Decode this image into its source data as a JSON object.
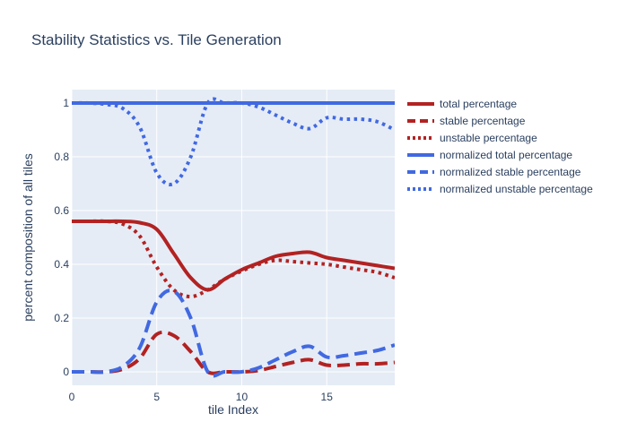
{
  "chart_data": {
    "type": "line",
    "title": "Stability Statistics vs. Tile Generation",
    "xlabel": "tile Index",
    "ylabel": "percent composition of all tiles",
    "xlim": [
      0,
      19
    ],
    "ylim": [
      -0.05,
      1.05
    ],
    "x_ticks": [
      0,
      5,
      10,
      15
    ],
    "x_tick_labels": [
      "0",
      "5",
      "10",
      "15"
    ],
    "y_ticks": [
      0,
      0.2,
      0.4,
      0.6,
      0.8,
      1
    ],
    "y_tick_labels": [
      "0",
      "0.2",
      "0.4",
      "0.6",
      "0.8",
      "1"
    ],
    "grid": true,
    "legend_position": "right",
    "x": [
      0,
      1,
      2,
      3,
      4,
      5,
      6,
      7,
      8,
      9,
      10,
      11,
      12,
      13,
      14,
      15,
      16,
      17,
      18,
      19
    ],
    "series": [
      {
        "name": "total percentage",
        "color": "#b22222",
        "dash": "solid",
        "values": [
          0.56,
          0.56,
          0.56,
          0.56,
          0.555,
          0.53,
          0.44,
          0.35,
          0.305,
          0.345,
          0.38,
          0.405,
          0.43,
          0.44,
          0.445,
          0.425,
          0.415,
          0.405,
          0.395,
          0.385
        ]
      },
      {
        "name": "stable percentage",
        "color": "#b22222",
        "dash": "dash",
        "values": [
          0.0,
          0.0,
          0.0,
          0.01,
          0.05,
          0.14,
          0.135,
          0.075,
          0.0,
          0.0,
          0.0,
          0.005,
          0.02,
          0.035,
          0.045,
          0.025,
          0.025,
          0.03,
          0.03,
          0.035
        ]
      },
      {
        "name": "unstable percentage",
        "color": "#b22222",
        "dash": "dot",
        "values": [
          0.56,
          0.56,
          0.56,
          0.55,
          0.505,
          0.39,
          0.305,
          0.28,
          0.305,
          0.345,
          0.375,
          0.4,
          0.415,
          0.41,
          0.405,
          0.4,
          0.39,
          0.38,
          0.37,
          0.35
        ]
      },
      {
        "name": "normalized total percentage",
        "color": "#4169e1",
        "dash": "solid",
        "values": [
          1,
          1,
          1,
          1,
          1,
          1,
          1,
          1,
          1,
          1,
          1,
          1,
          1,
          1,
          1,
          1,
          1,
          1,
          1,
          1
        ]
      },
      {
        "name": "normalized stable percentage",
        "color": "#4169e1",
        "dash": "dash",
        "values": [
          0.0,
          0.0,
          0.0,
          0.02,
          0.09,
          0.26,
          0.3,
          0.2,
          0.0,
          0.0,
          0.0,
          0.015,
          0.045,
          0.075,
          0.095,
          0.055,
          0.06,
          0.07,
          0.08,
          0.1
        ]
      },
      {
        "name": "normalized unstable percentage",
        "color": "#4169e1",
        "dash": "dot",
        "values": [
          1,
          1,
          0.995,
          0.98,
          0.91,
          0.74,
          0.7,
          0.8,
          1,
          1,
          1,
          0.985,
          0.955,
          0.925,
          0.905,
          0.945,
          0.94,
          0.94,
          0.93,
          0.9
        ]
      }
    ]
  }
}
